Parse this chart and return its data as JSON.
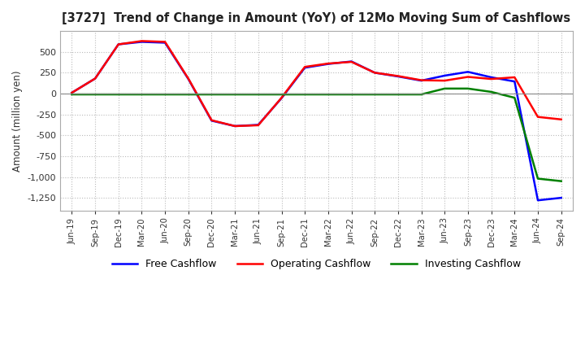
{
  "title": "[3727]  Trend of Change in Amount (YoY) of 12Mo Moving Sum of Cashflows",
  "ylabel": "Amount (million yen)",
  "x_labels": [
    "Jun-19",
    "Sep-19",
    "Dec-19",
    "Mar-20",
    "Jun-20",
    "Sep-20",
    "Dec-20",
    "Mar-21",
    "Jun-21",
    "Sep-21",
    "Dec-21",
    "Mar-22",
    "Jun-22",
    "Sep-22",
    "Dec-22",
    "Mar-23",
    "Jun-23",
    "Sep-23",
    "Dec-23",
    "Mar-24",
    "Jun-24",
    "Sep-24"
  ],
  "operating_cashflow": [
    10,
    180,
    590,
    630,
    620,
    180,
    -320,
    -390,
    -380,
    -50,
    320,
    360,
    380,
    250,
    210,
    160,
    155,
    200,
    175,
    195,
    -280,
    -310
  ],
  "investing_cashflow": [
    -10,
    -10,
    -10,
    -10,
    -10,
    -10,
    -10,
    -10,
    -10,
    -10,
    -10,
    -10,
    -10,
    -10,
    -10,
    -10,
    60,
    60,
    20,
    -50,
    -1020,
    -1050
  ],
  "free_cashflow": [
    10,
    180,
    590,
    620,
    610,
    175,
    -325,
    -390,
    -375,
    -55,
    310,
    355,
    385,
    250,
    205,
    155,
    215,
    260,
    195,
    145,
    -1280,
    -1250
  ],
  "ylim": [
    -1400,
    750
  ],
  "yticks": [
    500,
    250,
    0,
    -250,
    -500,
    -750,
    -1000,
    -1250
  ],
  "operating_color": "#FF0000",
  "investing_color": "#008000",
  "free_color": "#0000FF",
  "background_color": "#FFFFFF",
  "grid_color": "#BBBBBB"
}
